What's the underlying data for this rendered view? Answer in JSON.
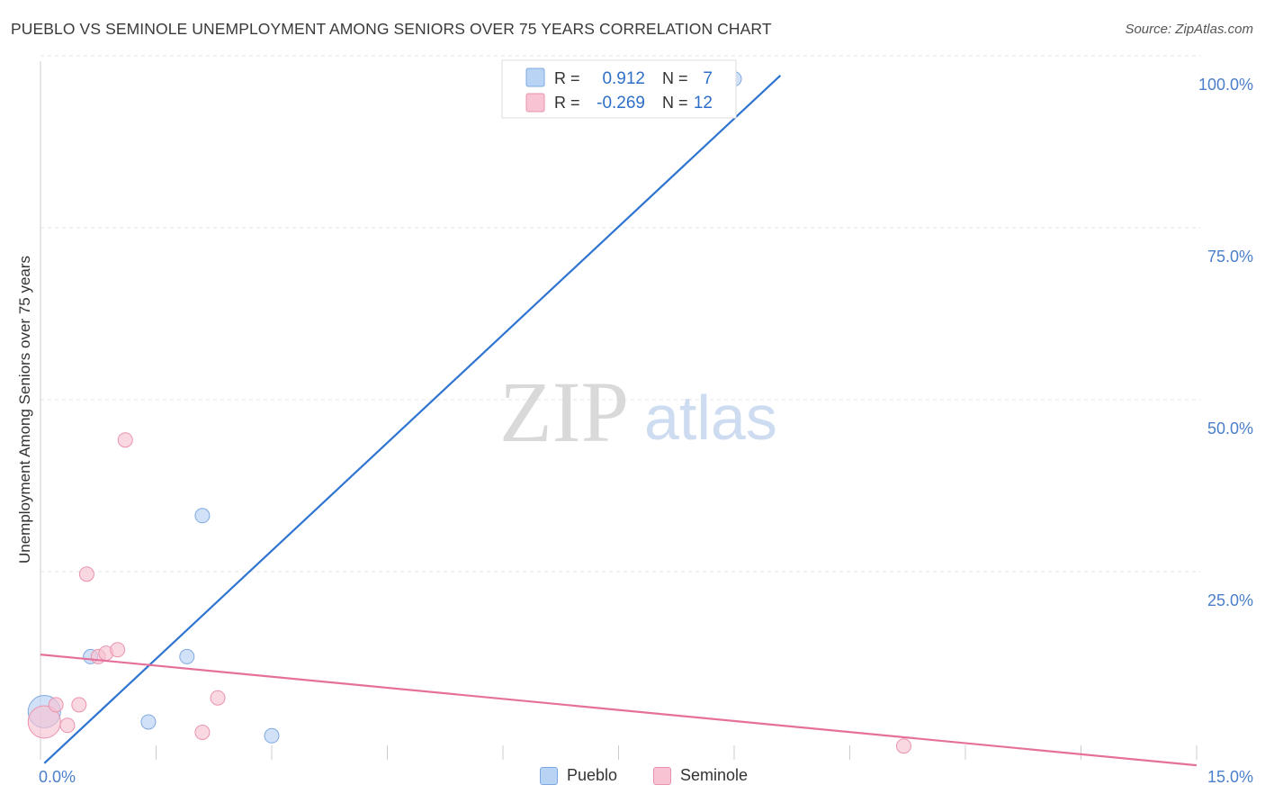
{
  "header": {
    "title": "PUEBLO VS SEMINOLE UNEMPLOYMENT AMONG SENIORS OVER 75 YEARS CORRELATION CHART",
    "source": "Source: ZipAtlas.com"
  },
  "watermark": {
    "zip": "ZIP",
    "atlas": "atlas"
  },
  "colors": {
    "pueblo_fill": "#b8d3f4",
    "pueblo_stroke": "#7ea9e0",
    "pueblo_line": "#2f74d0",
    "seminole_fill": "#f8c3d3",
    "seminole_stroke": "#ea93ae",
    "seminole_line": "#e5719a",
    "tick_label": "#4b7fcb",
    "grid": "#e6e6e6"
  },
  "legend_top": {
    "rows": [
      {
        "r_label": "R =",
        "r_value": "0.912",
        "n_label": "N =",
        "n_value": "7"
      },
      {
        "r_label": "R =",
        "r_value": "-0.269",
        "n_label": "N =",
        "n_value": "12"
      }
    ]
  },
  "legend_bottom": {
    "items": [
      "Pueblo",
      "Seminole"
    ]
  },
  "chart_data": {
    "type": "scatter",
    "title": "PUEBLO VS SEMINOLE UNEMPLOYMENT AMONG SENIORS OVER 75 YEARS CORRELATION CHART",
    "xlabel": "",
    "ylabel": "Unemployment Among Seniors over 75 years",
    "xlim": [
      0,
      15
    ],
    "ylim": [
      0,
      100
    ],
    "x_tick_labels": [
      {
        "value": 0,
        "label": "0.0%"
      },
      {
        "value": 15,
        "label": "15.0%"
      }
    ],
    "y_tick_labels": [
      {
        "value": 25,
        "label": "25.0%"
      },
      {
        "value": 50,
        "label": "50.0%"
      },
      {
        "value": 75,
        "label": "75.0%"
      },
      {
        "value": 100,
        "label": "100.0%"
      }
    ],
    "grid": true,
    "legend_position": "top-center",
    "series": [
      {
        "name": "Pueblo",
        "r": 0.912,
        "n": 7,
        "points": [
          {
            "x": 0.05,
            "y": 7.0,
            "size": "large"
          },
          {
            "x": 0.65,
            "y": 15.0
          },
          {
            "x": 1.4,
            "y": 5.5
          },
          {
            "x": 2.1,
            "y": 35.5
          },
          {
            "x": 1.9,
            "y": 15.0
          },
          {
            "x": 3.0,
            "y": 3.5
          },
          {
            "x": 9.0,
            "y": 99.0
          }
        ],
        "trend": {
          "x": [
            0.05,
            9.6
          ],
          "y": [
            -0.5,
            99.5
          ]
        }
      },
      {
        "name": "Seminole",
        "r": -0.269,
        "n": 12,
        "points": [
          {
            "x": 0.05,
            "y": 5.5,
            "size": "large"
          },
          {
            "x": 0.2,
            "y": 8.0
          },
          {
            "x": 0.35,
            "y": 5.0
          },
          {
            "x": 0.5,
            "y": 8.0
          },
          {
            "x": 0.6,
            "y": 27.0
          },
          {
            "x": 0.75,
            "y": 15.0
          },
          {
            "x": 0.85,
            "y": 15.5
          },
          {
            "x": 1.0,
            "y": 16.0
          },
          {
            "x": 1.1,
            "y": 46.5
          },
          {
            "x": 2.1,
            "y": 4.0
          },
          {
            "x": 2.3,
            "y": 9.0
          },
          {
            "x": 11.2,
            "y": 2.0
          }
        ],
        "trend": {
          "x": [
            0.0,
            15.0
          ],
          "y": [
            15.3,
            -0.8
          ]
        }
      }
    ]
  }
}
